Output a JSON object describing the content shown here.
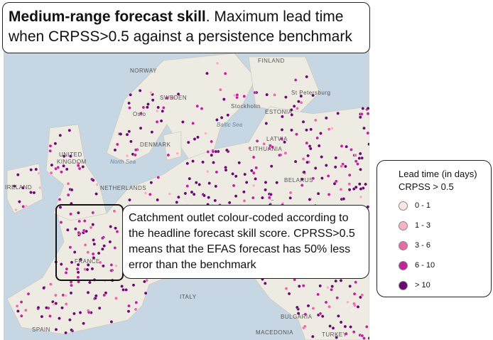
{
  "header": {
    "title_bold": "Medium-range forecast skill",
    "title_rest": ". Maximum lead time when CRPSS>0.5 against a persistence benchmark"
  },
  "callout": {
    "text": "Catchment outlet colour-coded according to the headline forecast skill score. CPRSS>0.5 means that the EFAS forecast has 50% less error than the benchmark"
  },
  "legend": {
    "title": "Lead time (in days)",
    "subtitle": "CRPSS > 0.5",
    "items": [
      {
        "label": "0 - 1",
        "color": "#fbe6e6"
      },
      {
        "label": "1 - 3",
        "color": "#f7b3c4"
      },
      {
        "label": "3 - 6",
        "color": "#e86aa6"
      },
      {
        "label": "6 - 10",
        "color": "#c0259a"
      },
      {
        "label": "> 10",
        "color": "#6a0a6e"
      }
    ]
  },
  "map": {
    "labels": [
      "NORWAY",
      "FINLAND",
      "SWEDEN",
      "ESTONIA",
      "LATVIA",
      "LITHUANIA",
      "DENMARK",
      "UNITED",
      "KINGDOM",
      "IRELAND",
      "NETHERLANDS",
      "BELARUS",
      "FRANCE",
      "ITALY",
      "SPAIN",
      "BULGARIA",
      "MACEDONIA",
      "TURKEY",
      "St Petersburg",
      "Stockholm",
      "Oslo"
    ],
    "seas": [
      "North Sea",
      "Baltic Sea"
    ]
  }
}
